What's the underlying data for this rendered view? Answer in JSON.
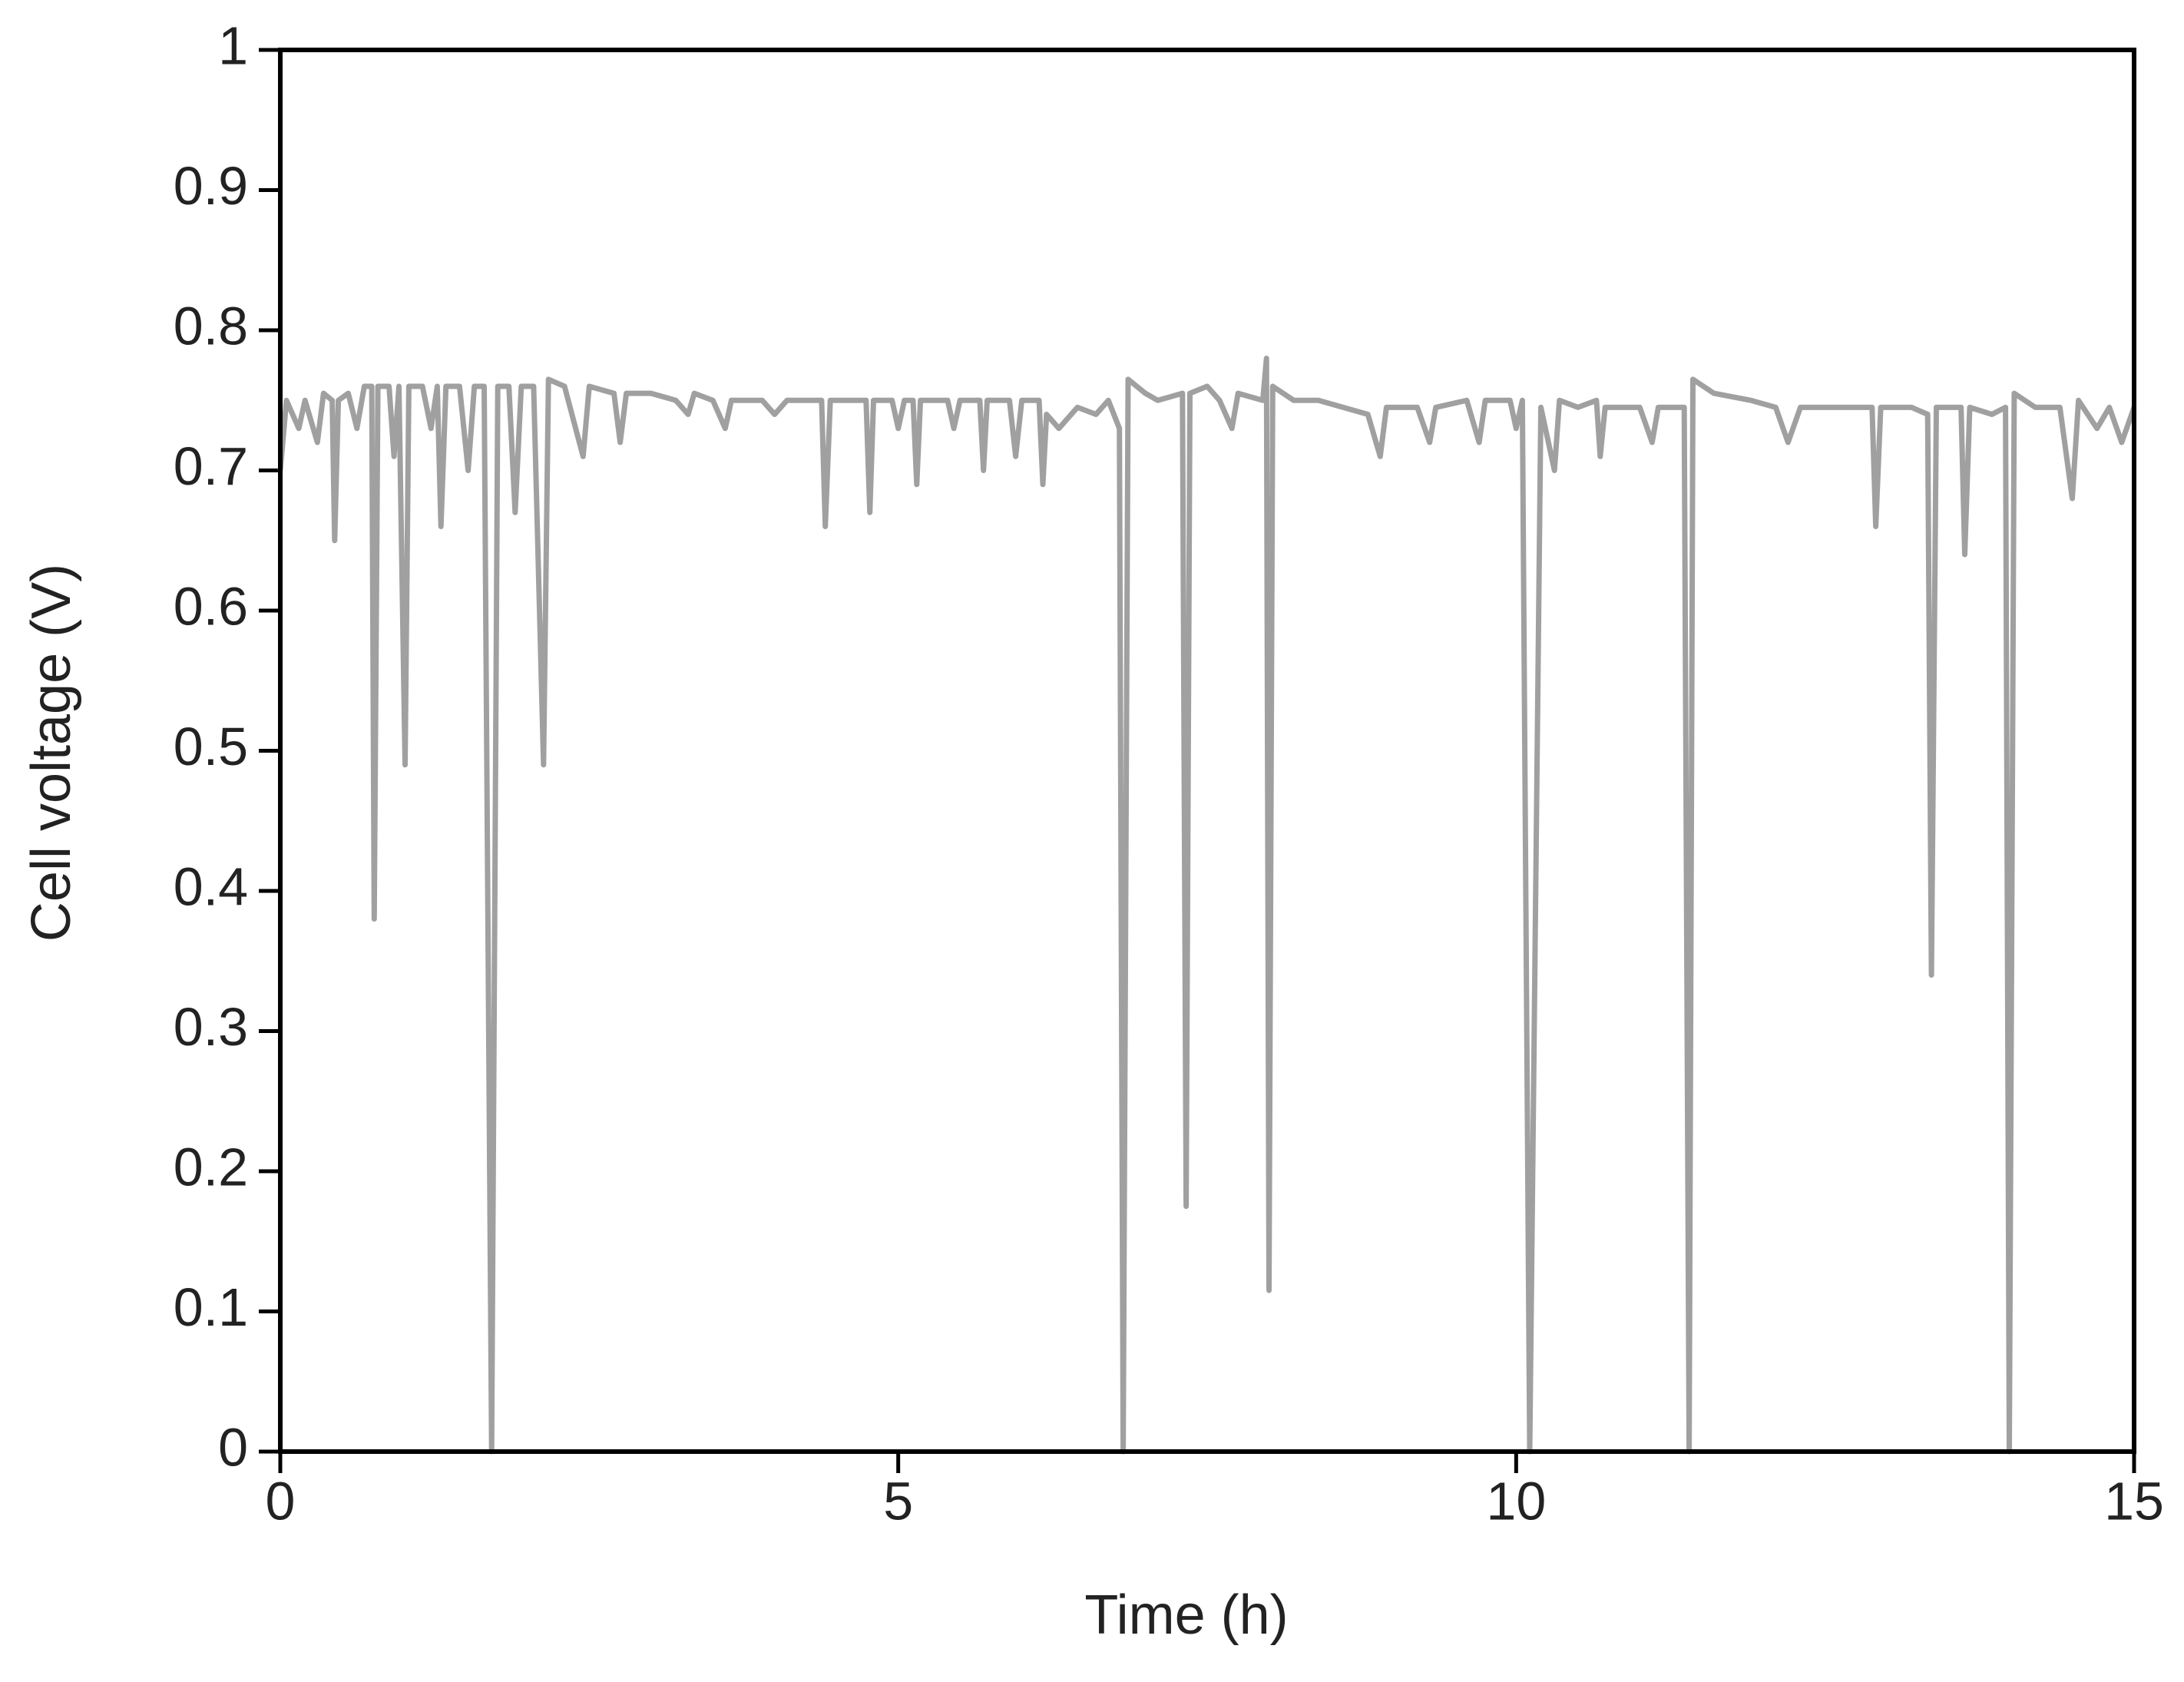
{
  "chart_data": {
    "type": "line",
    "xlabel": "Time (h)",
    "ylabel": "Cell voltage (V)",
    "color": "#a0a0a0",
    "x": [
      0,
      0.05,
      0.15,
      0.2,
      0.3,
      0.35,
      0.42,
      0.44,
      0.47,
      0.55,
      0.62,
      0.68,
      0.74,
      0.76,
      0.79,
      0.88,
      0.92,
      0.96,
      1.01,
      1.04,
      1.15,
      1.22,
      1.27,
      1.3,
      1.34,
      1.45,
      1.52,
      1.57,
      1.65,
      1.71,
      1.76,
      1.85,
      1.9,
      1.95,
      2.05,
      2.13,
      2.17,
      2.3,
      2.45,
      2.5,
      2.7,
      2.75,
      2.8,
      3.0,
      3.2,
      3.3,
      3.35,
      3.5,
      3.6,
      3.65,
      3.9,
      4.0,
      4.1,
      4.38,
      4.41,
      4.45,
      4.6,
      4.74,
      4.77,
      4.8,
      4.95,
      5.0,
      5.05,
      5.12,
      5.15,
      5.18,
      5.4,
      5.45,
      5.5,
      5.66,
      5.69,
      5.72,
      5.9,
      5.95,
      6.0,
      6.14,
      6.17,
      6.2,
      6.3,
      6.45,
      6.6,
      6.7,
      6.79,
      6.82,
      6.86,
      7.0,
      7.1,
      7.3,
      7.33,
      7.36,
      7.5,
      7.6,
      7.7,
      7.75,
      7.95,
      7.98,
      8.0,
      8.03,
      8.2,
      8.4,
      8.6,
      8.8,
      8.9,
      8.95,
      9.2,
      9.3,
      9.35,
      9.6,
      9.7,
      9.75,
      9.95,
      10.0,
      10.05,
      10.11,
      10.2,
      10.31,
      10.35,
      10.5,
      10.65,
      10.68,
      10.72,
      11.0,
      11.1,
      11.15,
      11.36,
      11.4,
      11.43,
      11.6,
      11.9,
      12.1,
      12.2,
      12.3,
      12.5,
      12.8,
      12.88,
      12.91,
      12.95,
      13.2,
      13.33,
      13.36,
      13.4,
      13.6,
      13.63,
      13.67,
      13.85,
      13.96,
      13.99,
      14.03,
      14.2,
      14.4,
      14.5,
      14.55,
      14.7,
      14.8,
      14.9,
      15.0
    ],
    "values": [
      0.7,
      0.75,
      0.73,
      0.75,
      0.72,
      0.755,
      0.75,
      0.65,
      0.75,
      0.755,
      0.73,
      0.76,
      0.76,
      0.38,
      0.76,
      0.76,
      0.71,
      0.76,
      0.49,
      0.76,
      0.76,
      0.73,
      0.76,
      0.66,
      0.76,
      0.76,
      0.7,
      0.76,
      0.76,
      0.0,
      0.76,
      0.76,
      0.67,
      0.76,
      0.76,
      0.49,
      0.765,
      0.76,
      0.71,
      0.76,
      0.755,
      0.72,
      0.755,
      0.755,
      0.75,
      0.74,
      0.755,
      0.75,
      0.73,
      0.75,
      0.75,
      0.74,
      0.75,
      0.75,
      0.66,
      0.75,
      0.75,
      0.75,
      0.67,
      0.75,
      0.75,
      0.73,
      0.75,
      0.75,
      0.69,
      0.75,
      0.75,
      0.73,
      0.75,
      0.75,
      0.7,
      0.75,
      0.75,
      0.71,
      0.75,
      0.75,
      0.69,
      0.74,
      0.73,
      0.745,
      0.74,
      0.75,
      0.73,
      0.0,
      0.765,
      0.755,
      0.75,
      0.755,
      0.175,
      0.755,
      0.76,
      0.75,
      0.73,
      0.755,
      0.75,
      0.78,
      0.115,
      0.76,
      0.75,
      0.75,
      0.745,
      0.74,
      0.71,
      0.745,
      0.745,
      0.72,
      0.745,
      0.75,
      0.72,
      0.75,
      0.75,
      0.73,
      0.75,
      0.0,
      0.745,
      0.7,
      0.75,
      0.745,
      0.75,
      0.71,
      0.745,
      0.745,
      0.72,
      0.745,
      0.745,
      0.0,
      0.765,
      0.755,
      0.75,
      0.745,
      0.72,
      0.745,
      0.745,
      0.745,
      0.745,
      0.66,
      0.745,
      0.745,
      0.74,
      0.34,
      0.745,
      0.745,
      0.64,
      0.745,
      0.74,
      0.745,
      0.0,
      0.755,
      0.745,
      0.745,
      0.68,
      0.75,
      0.73,
      0.745,
      0.72,
      0.745
    ],
    "xlim": [
      0,
      15
    ],
    "xticks": [
      0,
      5,
      10,
      15
    ],
    "ylim": [
      0,
      1
    ],
    "yticks": [
      0,
      0.1,
      0.2,
      0.3,
      0.4,
      0.5,
      0.6,
      0.7,
      0.8,
      0.9,
      1
    ]
  }
}
